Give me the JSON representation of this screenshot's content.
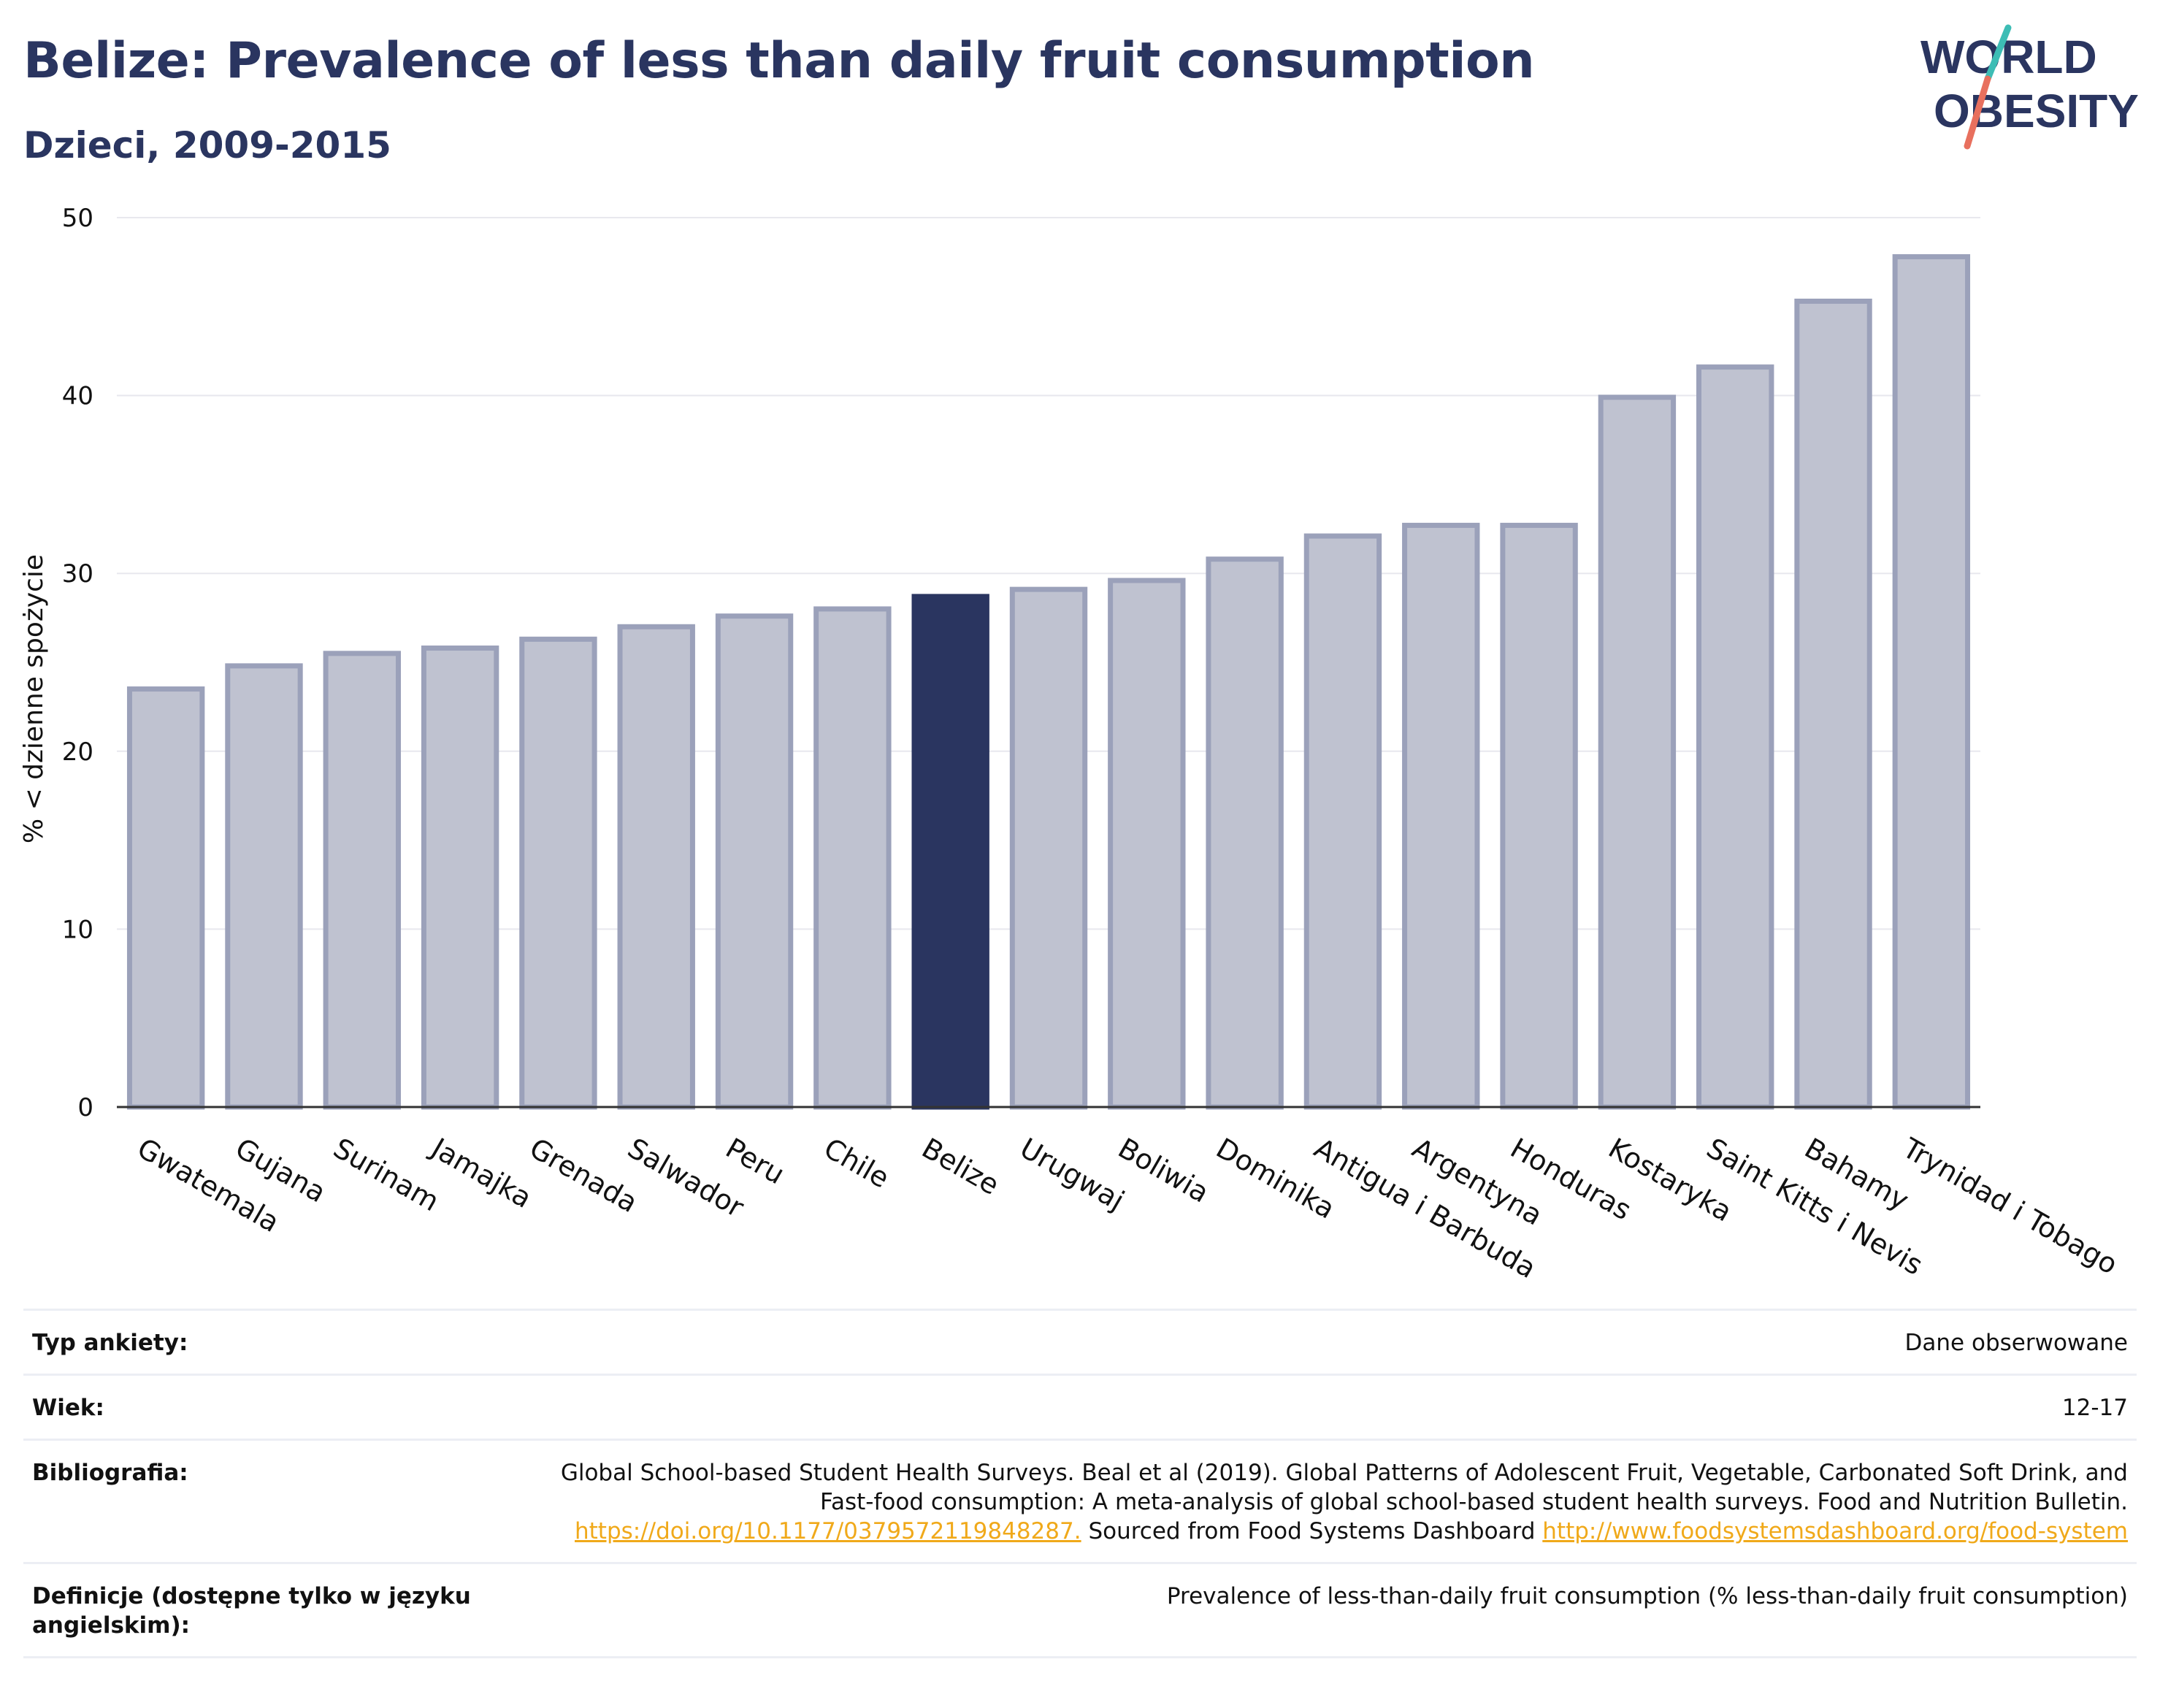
{
  "header": {
    "title": "Belize: Prevalence of less than daily fruit consumption",
    "subtitle": "Dzieci, 2009-2015",
    "logo_text_line1": "WORLD",
    "logo_text_line2": "OBESITY"
  },
  "colors": {
    "bar": "#bfc2d0",
    "bar_outline": "#9ba1ba",
    "highlight": "#2a3560",
    "axis": "#333333",
    "grid": "#e8e8ee",
    "link": "#f0a91a",
    "logo_stroke_teal": "#3dbdb5",
    "logo_stroke_coral": "#e8705e"
  },
  "chart_data": {
    "type": "bar",
    "categories": [
      "Gwatemala",
      "Gujana",
      "Surinam",
      "Jamajka",
      "Grenada",
      "Salwador",
      "Peru",
      "Chile",
      "Belize",
      "Urugwaj",
      "Boliwia",
      "Dominika",
      "Antigua i Barbuda",
      "Argentyna",
      "Honduras",
      "Kostaryka",
      "Saint Kitts i Nevis",
      "Bahamy",
      "Trynidad i Tobago"
    ],
    "values": [
      23.5,
      24.8,
      25.5,
      25.8,
      26.3,
      27.0,
      27.6,
      28.0,
      28.7,
      29.1,
      29.6,
      30.8,
      32.1,
      32.7,
      32.7,
      39.9,
      41.6,
      45.3,
      47.8
    ],
    "highlight": "Belize",
    "ylabel": "% < dzienne spożycie",
    "xlabel": "",
    "ylim": [
      0,
      50
    ],
    "yticks": [
      0,
      10,
      20,
      30,
      40,
      50
    ],
    "grid": true,
    "legend": "none"
  },
  "details": {
    "rows": [
      {
        "label": "Typ ankiety:",
        "value": "Dane obserwowane"
      },
      {
        "label": "Wiek:",
        "value": "12-17"
      },
      {
        "label": "Bibliografia:",
        "text1": "Global School-based Student Health Surveys. Beal et al (2019). Global Patterns of Adolescent Fruit, Vegetable, Carbonated Soft Drink, and Fast-food consumption: A meta-analysis of global school-based student health surveys. Food and Nutrition Bulletin.",
        "link1": "https://doi.org/10.1177/0379572119848287.",
        "text2": "Sourced from Food Systems Dashboard",
        "link2": "http://www.foodsystemsdashboard.org/food-system"
      },
      {
        "label": "Definicje (dostępne tylko w języku angielskim):",
        "value": "Prevalence of less-than-daily fruit consumption (% less-than-daily fruit consumption)"
      }
    ]
  }
}
